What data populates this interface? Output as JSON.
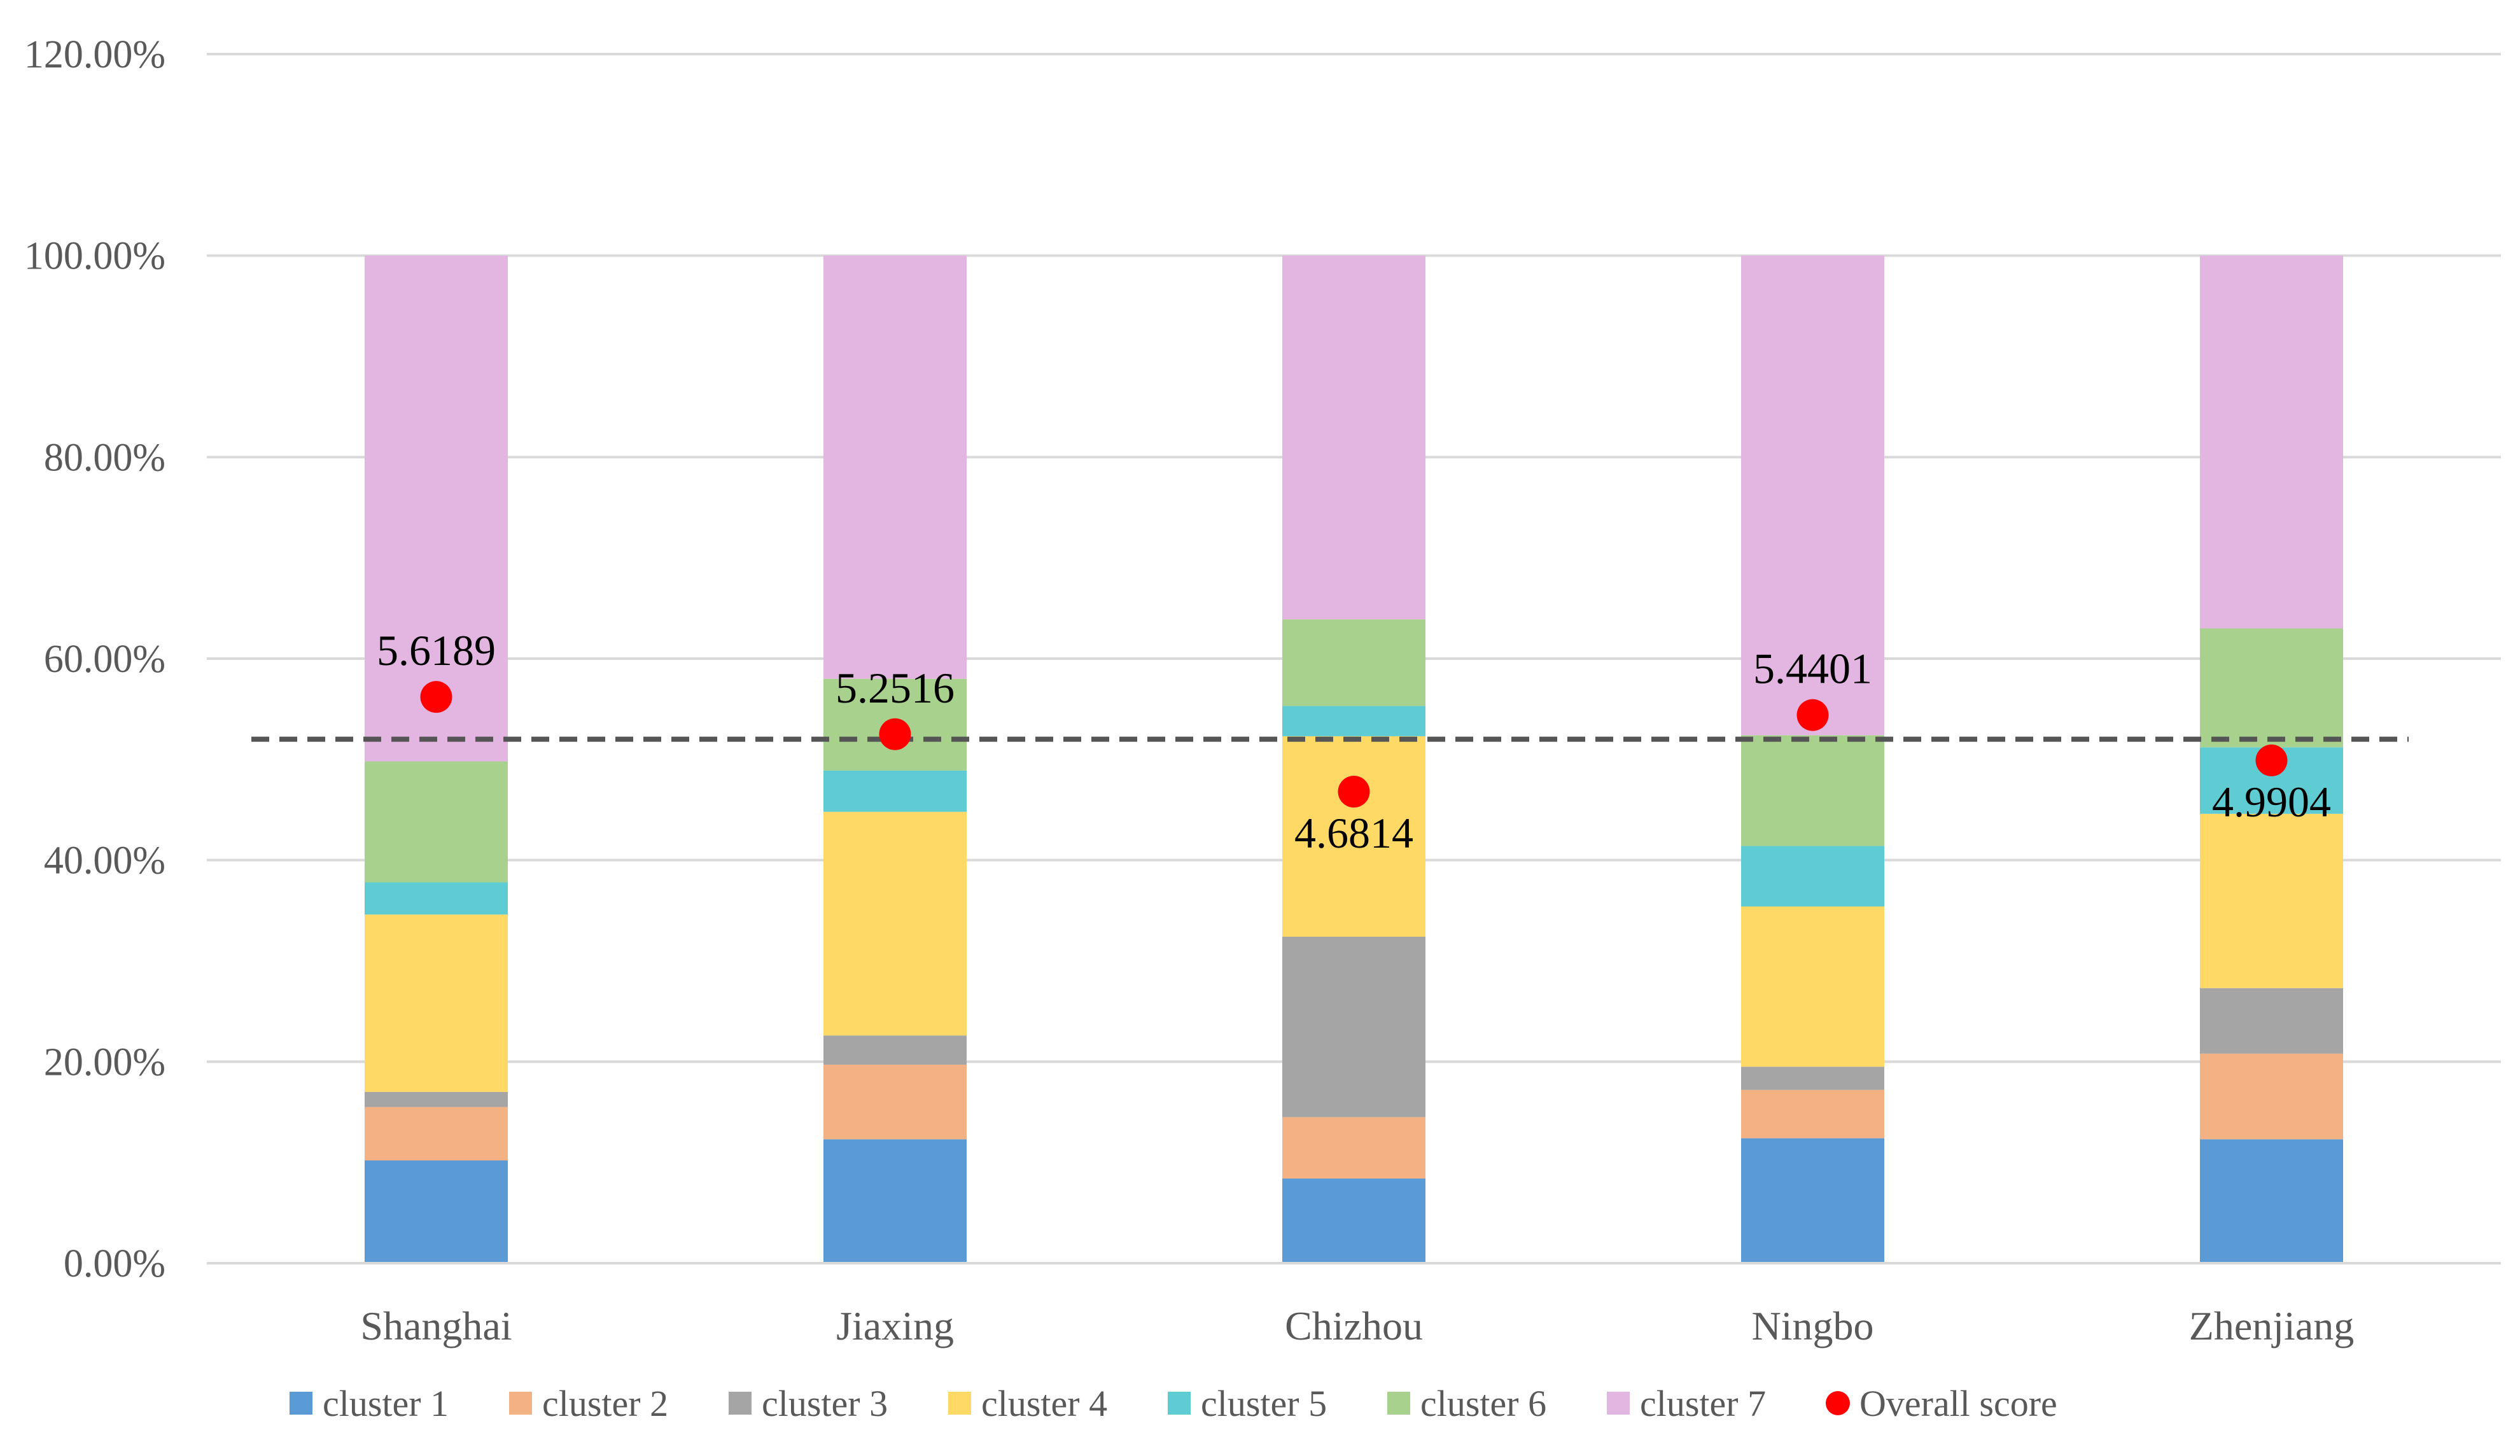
{
  "chart_data": {
    "type": "bar",
    "stacked": true,
    "percent": true,
    "title": "",
    "xlabel": "",
    "ylabel": "",
    "ylim": [
      0,
      120
    ],
    "yticks": [
      0,
      20,
      40,
      60,
      80,
      100,
      120
    ],
    "ytick_labels": [
      "0.00%",
      "20.00%",
      "40.00%",
      "60.00%",
      "80.00%",
      "100.00%",
      "120.00%"
    ],
    "grid": true,
    "legend_position": "bottom",
    "categories": [
      "Shanghai",
      "Jiaxing",
      "Chizhou",
      "Ningbo",
      "Zhenjiang"
    ],
    "series": [
      {
        "name": "cluster 1",
        "color": "#5B9BD5",
        "values": [
          10.2,
          12.3,
          8.4,
          12.4,
          12.3
        ]
      },
      {
        "name": "cluster 2",
        "color": "#F4B183",
        "values": [
          5.3,
          7.4,
          6.1,
          4.8,
          8.5
        ]
      },
      {
        "name": "cluster 3",
        "color": "#A5A5A5",
        "values": [
          1.5,
          2.9,
          17.9,
          2.3,
          6.5
        ]
      },
      {
        "name": "cluster 4",
        "color": "#FFD966",
        "values": [
          17.6,
          22.2,
          19.9,
          15.9,
          17.3
        ]
      },
      {
        "name": "cluster 5",
        "color": "#5FCCD4",
        "values": [
          3.2,
          4.1,
          3.0,
          6.0,
          6.6
        ]
      },
      {
        "name": "cluster 6",
        "color": "#A9D18E",
        "values": [
          12.0,
          9.1,
          8.6,
          11.0,
          11.8
        ]
      },
      {
        "name": "cluster 7",
        "color": "#E2B6E1",
        "values": [
          50.2,
          42.0,
          36.1,
          47.6,
          37.0
        ]
      }
    ],
    "overall_score": {
      "name": "Overall score",
      "color": "#FF0000",
      "values": [
        5.6189,
        5.2516,
        4.6814,
        5.4401,
        4.9904
      ],
      "labels": [
        "5.6189",
        "5.2516",
        "4.6814",
        "5.4401",
        "4.9904"
      ],
      "label_position": [
        "above",
        "above",
        "below",
        "above",
        "below"
      ],
      "percent_position": [
        56.2,
        52.5,
        46.8,
        54.4,
        49.9
      ]
    },
    "reference_line": {
      "value": 52,
      "style": "dashed",
      "color": "#595959"
    }
  }
}
